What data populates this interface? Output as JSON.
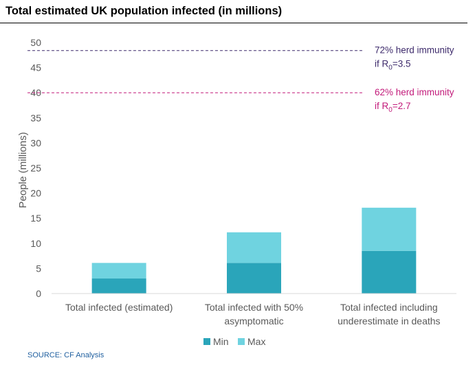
{
  "title": "Total estimated UK population infected (in millions)",
  "source": "SOURCE: CF Analysis",
  "colors": {
    "min": "#2aa5ba",
    "max": "#6fd3e0",
    "line_72": "#3d2a6b",
    "line_62": "#c21a7a",
    "axis": "#d9d9d9"
  },
  "chart_data": {
    "type": "bar",
    "stacked": true,
    "ylabel": "People (millions)",
    "ylim": [
      0,
      50
    ],
    "yticks": [
      0,
      5,
      10,
      15,
      20,
      25,
      30,
      35,
      40,
      45,
      50
    ],
    "categories": [
      [
        "Total infected (estimated)"
      ],
      [
        "Total infected with 50%",
        "asymptomatic"
      ],
      [
        "Total infected including",
        "underestimate in deaths"
      ]
    ],
    "series": [
      {
        "name": "Min",
        "values": [
          3.0,
          6.1,
          8.5
        ]
      },
      {
        "name": "Max",
        "values": [
          3.1,
          6.1,
          8.6
        ]
      }
    ],
    "reference_lines": [
      {
        "value": 48.4,
        "label": "72% herd immunity",
        "sublabel_pre": "if R",
        "sublabel_sub": "0",
        "sublabel_post": "=3.5",
        "style": "dashed"
      },
      {
        "value": 40.0,
        "label": "62% herd immunity",
        "sublabel_pre": "if R",
        "sublabel_sub": "0",
        "sublabel_post": "=2.7",
        "style": "dashed"
      }
    ],
    "legend": {
      "placement": "bottom"
    }
  }
}
